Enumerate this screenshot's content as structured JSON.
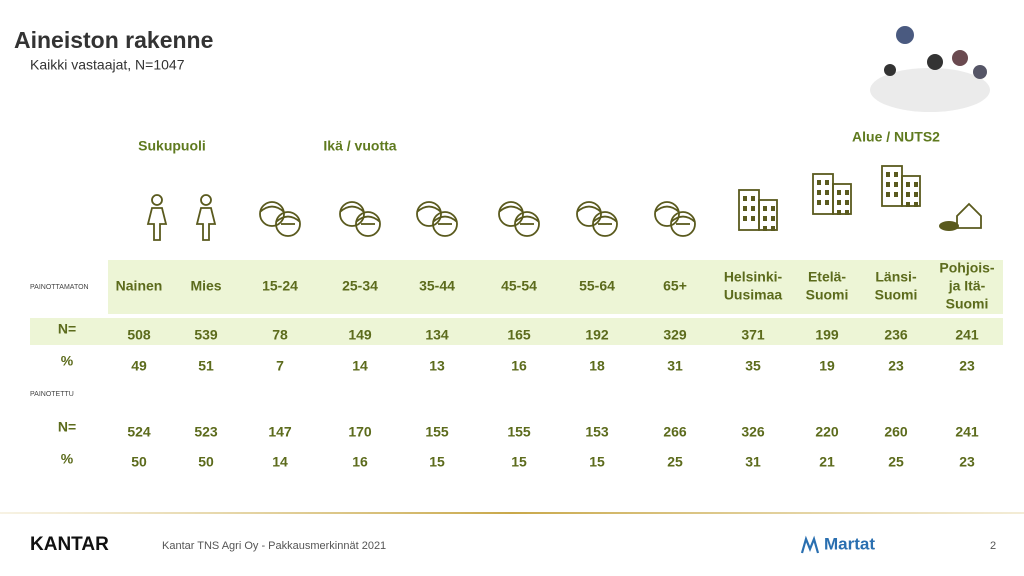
{
  "header": {
    "title": "Aineiston rakenne",
    "subtitle": "Kaikki vastaajat, N=1047"
  },
  "groups": [
    "Sukupuoli",
    "Ikä / vuotta",
    "Alue / NUTS2"
  ],
  "columns": [
    [
      "Nainen"
    ],
    [
      "Mies"
    ],
    [
      "15-24"
    ],
    [
      "25-34"
    ],
    [
      "35-44"
    ],
    [
      "45-54"
    ],
    [
      "55-64"
    ],
    [
      "65+"
    ],
    [
      "Helsinki-",
      "Uusimaa"
    ],
    [
      "Etelä-",
      "Suomi"
    ],
    [
      "Länsi-",
      "Suomi"
    ],
    [
      "Pohjois-",
      "ja Itä-",
      "Suomi"
    ]
  ],
  "unweighted": {
    "label": "PAINOTTAMATON",
    "n_label": "N=",
    "n": [
      508,
      539,
      78,
      149,
      134,
      165,
      192,
      329,
      371,
      199,
      236,
      241
    ],
    "pct_label": "%",
    "pct": [
      49,
      51,
      7,
      14,
      13,
      16,
      18,
      31,
      35,
      19,
      23,
      23
    ]
  },
  "weighted": {
    "label": "PAINOTETTU",
    "n_label": "N=",
    "n": [
      524,
      523,
      147,
      170,
      155,
      155,
      153,
      266,
      326,
      220,
      260,
      241
    ],
    "pct_label": "%",
    "pct": [
      50,
      50,
      14,
      16,
      15,
      15,
      15,
      25,
      31,
      21,
      25,
      23
    ]
  },
  "footer": {
    "brand": "KANTAR",
    "text": "Kantar TNS Agri Oy - Pakkausmerkinnät 2021",
    "partner": "Martat",
    "page": "2"
  }
}
